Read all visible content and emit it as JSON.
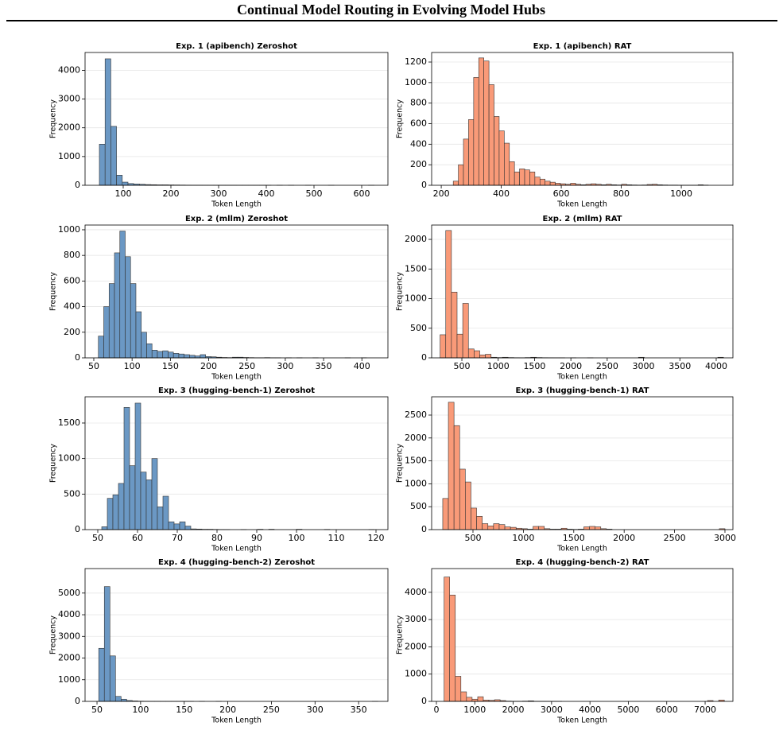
{
  "title": "Continual Model Routing in Evolving Model Hubs",
  "chart_data": [
    {
      "type": "histogram",
      "title": "Exp. 1 (apibench) Zeroshot",
      "xlabel": "Token Length",
      "ylabel": "Frequency",
      "color": "#6b98c4",
      "grid": "y",
      "bins": [
        50,
        62,
        74,
        86,
        98,
        110,
        122,
        134,
        146,
        158,
        170,
        182,
        194,
        206,
        218,
        230,
        242,
        254,
        266,
        278,
        290,
        302,
        314,
        326,
        338,
        350,
        362,
        374,
        386,
        398,
        410,
        422,
        434,
        446,
        458,
        470,
        482,
        494,
        506,
        518,
        530,
        542,
        554,
        566,
        578,
        590,
        602,
        614,
        626
      ],
      "counts": [
        1430,
        4400,
        2050,
        350,
        110,
        60,
        45,
        35,
        25,
        20,
        15,
        15,
        12,
        10,
        8,
        6,
        5,
        5,
        4,
        3,
        3,
        2,
        2,
        2,
        1,
        1,
        1,
        1,
        1,
        1,
        0,
        1,
        0,
        1,
        0,
        0,
        1,
        0,
        0,
        0,
        1,
        0,
        0,
        0,
        0,
        0,
        0,
        1
      ],
      "xlim": [
        20,
        655
      ],
      "xticks": [
        100,
        200,
        300,
        400,
        500,
        600
      ],
      "ylim": [
        0,
        4620
      ],
      "yticks": [
        0,
        1000,
        2000,
        3000,
        4000
      ]
    },
    {
      "type": "histogram",
      "title": "Exp. 1 (apibench) RAT",
      "xlabel": "Token Length",
      "ylabel": "Frequency",
      "color": "#f99a78",
      "grid": "y",
      "bins": [
        240,
        257,
        274,
        291,
        308,
        325,
        342,
        359,
        376,
        393,
        410,
        427,
        444,
        461,
        478,
        495,
        512,
        529,
        546,
        563,
        580,
        597,
        614,
        631,
        648,
        665,
        682,
        699,
        716,
        733,
        750,
        767,
        784,
        801,
        818,
        835,
        852,
        869,
        886,
        903,
        920,
        937,
        954,
        971,
        988,
        1005,
        1022,
        1039,
        1056,
        1073,
        1090
      ],
      "counts": [
        40,
        200,
        450,
        640,
        1050,
        1240,
        1210,
        980,
        670,
        530,
        410,
        230,
        130,
        160,
        150,
        130,
        80,
        60,
        40,
        30,
        20,
        15,
        10,
        20,
        10,
        5,
        10,
        15,
        10,
        5,
        10,
        5,
        3,
        10,
        5,
        3,
        2,
        3,
        8,
        10,
        5,
        3,
        2,
        2,
        1,
        1,
        1,
        1,
        5,
        2
      ],
      "xlim": [
        168,
        1172
      ],
      "xticks": [
        200,
        400,
        600,
        800,
        1000
      ],
      "ylim": [
        0,
        1293
      ],
      "yticks": [
        0,
        200,
        400,
        600,
        800,
        1000,
        1200
      ]
    },
    {
      "type": "histogram",
      "title": "Exp. 2 (mllm) Zeroshot",
      "xlabel": "Token Length",
      "ylabel": "Frequency",
      "color": "#6b98c4",
      "grid": "y",
      "bins": [
        56,
        63,
        70,
        77,
        84,
        91,
        98,
        105,
        112,
        119,
        126,
        133,
        140,
        147,
        154,
        161,
        168,
        175,
        182,
        189,
        196,
        203,
        210,
        217,
        224,
        231,
        238,
        245,
        252,
        259,
        266,
        273,
        280,
        287,
        294,
        301,
        308,
        315,
        322,
        329,
        336,
        343,
        350,
        357,
        364,
        371,
        378,
        385,
        392,
        399,
        406
      ],
      "counts": [
        170,
        400,
        580,
        820,
        990,
        790,
        580,
        360,
        200,
        110,
        60,
        50,
        55,
        45,
        35,
        30,
        25,
        20,
        15,
        25,
        10,
        8,
        5,
        3,
        2,
        5,
        5,
        3,
        2,
        1,
        1,
        2,
        1,
        1,
        0,
        1,
        0,
        1,
        0,
        0,
        1,
        0,
        0,
        0,
        0,
        0,
        1,
        0,
        0,
        1
      ],
      "xlim": [
        38.6,
        434
      ],
      "xticks": [
        50,
        100,
        150,
        200,
        250,
        300,
        350,
        400
      ],
      "ylim": [
        0,
        1037
      ],
      "yticks": [
        0,
        200,
        400,
        600,
        800,
        1000
      ]
    },
    {
      "type": "histogram",
      "title": "Exp. 2 (mllm) RAT",
      "xlabel": "Token Length",
      "ylabel": "Frequency",
      "color": "#f99a78",
      "grid": "y",
      "bins": [
        200,
        278,
        356,
        434,
        512,
        590,
        668,
        746,
        824,
        902,
        980,
        1058,
        1136,
        1214,
        1292,
        1370,
        1448,
        1526,
        1604,
        1682,
        1760,
        1838,
        1916,
        1994,
        2072,
        2150,
        2228,
        2306,
        2384,
        2462,
        2540,
        2618,
        2696,
        2774,
        2852,
        2930,
        3008,
        3086,
        3164,
        3242,
        3320,
        3398,
        3476,
        3554,
        3632,
        3710,
        3788,
        3866,
        3944,
        4022,
        4100
      ],
      "counts": [
        390,
        2150,
        1110,
        400,
        920,
        150,
        120,
        50,
        60,
        10,
        5,
        10,
        5,
        3,
        2,
        5,
        10,
        5,
        3,
        2,
        1,
        1,
        0,
        1,
        0,
        0,
        1,
        0,
        0,
        0,
        0,
        0,
        0,
        0,
        0,
        10,
        0,
        0,
        0,
        0,
        0,
        0,
        0,
        0,
        0,
        0,
        0,
        0,
        0,
        10
      ],
      "xlim": [
        84,
        4230
      ],
      "xticks": [
        500,
        1000,
        1500,
        2000,
        2500,
        3000,
        3500,
        4000
      ],
      "ylim": [
        0,
        2242
      ],
      "yticks": [
        0,
        500,
        1000,
        1500,
        2000
      ]
    },
    {
      "type": "histogram",
      "title": "Exp. 3 (hugging-bench-1) Zeroshot",
      "xlabel": "Token Length",
      "ylabel": "Frequency",
      "color": "#6b98c4",
      "grid": "y",
      "bins": [
        51,
        52.4,
        53.8,
        55.2,
        56.6,
        58,
        59.4,
        60.8,
        62.2,
        63.6,
        65,
        66.4,
        67.8,
        69.2,
        70.6,
        72,
        73.4,
        74.8,
        76.2,
        77.6,
        79,
        80.4,
        81.8,
        83.2,
        84.6,
        86,
        87.4,
        88.8,
        90.2,
        91.6,
        93,
        94.4,
        95.8,
        97.2,
        98.6,
        100,
        101.4,
        102.8,
        104.2,
        105.6,
        107,
        108.4,
        109.8,
        111.2,
        112.6,
        114,
        115.4,
        116.8,
        118.2,
        119.6,
        121
      ],
      "counts": [
        40,
        440,
        490,
        650,
        1720,
        900,
        1780,
        810,
        700,
        1000,
        320,
        470,
        110,
        80,
        110,
        50,
        10,
        8,
        5,
        5,
        3,
        2,
        1,
        0,
        0,
        1,
        0,
        0,
        5,
        0,
        5,
        0,
        0,
        0,
        0,
        5,
        0,
        0,
        0,
        0,
        3,
        0,
        0,
        0,
        0,
        0,
        0,
        0,
        1,
        0
      ],
      "xlim": [
        46.8,
        123
      ],
      "xticks": [
        50,
        60,
        70,
        80,
        90,
        100,
        110,
        120
      ],
      "ylim": [
        0,
        1869
      ],
      "yticks": [
        0,
        500,
        1000,
        1500
      ]
    },
    {
      "type": "histogram",
      "title": "Exp. 3 (hugging-bench-1) RAT",
      "xlabel": "Token Length",
      "ylabel": "Frequency",
      "color": "#f99a78",
      "grid": "y",
      "bins": [
        200,
        256,
        312,
        368,
        424,
        480,
        536,
        592,
        648,
        704,
        760,
        816,
        872,
        928,
        984,
        1040,
        1096,
        1152,
        1208,
        1264,
        1320,
        1376,
        1432,
        1488,
        1544,
        1600,
        1656,
        1712,
        1768,
        1824,
        1880,
        1936,
        1992,
        2048,
        2104,
        2160,
        2216,
        2272,
        2328,
        2384,
        2440,
        2496,
        2552,
        2608,
        2664,
        2720,
        2776,
        2832,
        2888,
        2944,
        3000
      ],
      "counts": [
        680,
        2780,
        2270,
        1320,
        1040,
        470,
        290,
        130,
        80,
        130,
        110,
        60,
        50,
        30,
        20,
        10,
        70,
        70,
        20,
        10,
        10,
        30,
        10,
        5,
        10,
        60,
        70,
        60,
        20,
        10,
        0,
        0,
        0,
        0,
        0,
        0,
        0,
        0,
        0,
        0,
        0,
        0,
        0,
        0,
        0,
        0,
        0,
        0,
        0,
        20
      ],
      "xlim": [
        90,
        3079
      ],
      "xticks": [
        500,
        1000,
        1500,
        2000,
        2500,
        3000
      ],
      "ylim": [
        0,
        2899
      ],
      "yticks": [
        0,
        500,
        1000,
        1500,
        2000,
        2500
      ]
    },
    {
      "type": "histogram",
      "title": "Exp. 4 (hugging-bench-2) Zeroshot",
      "xlabel": "Token Length",
      "ylabel": "Frequency",
      "color": "#6b98c4",
      "grid": "y",
      "bins": [
        52,
        58.4,
        64.8,
        71.2,
        77.6,
        84,
        90.4,
        96.8,
        103.2,
        109.6,
        116,
        122.4,
        128.8,
        135.2,
        141.6,
        148,
        154.4,
        160.8,
        167.2,
        173.6,
        180,
        186.4,
        192.8,
        199.2,
        205.6,
        212,
        218.4,
        224.8,
        231.2,
        237.6,
        244,
        250.4,
        256.8,
        263.2,
        269.6,
        276,
        282.4,
        288.8,
        295.2,
        301.6,
        308,
        314.4,
        320.8,
        327.2,
        333.6,
        340,
        346.4,
        352.8,
        359.2,
        365.6,
        372
      ],
      "counts": [
        2450,
        5300,
        2100,
        230,
        100,
        40,
        20,
        10,
        5,
        4,
        3,
        2,
        2,
        1,
        1,
        1,
        1,
        0,
        1,
        0,
        0,
        1,
        0,
        0,
        0,
        0,
        0,
        0,
        0,
        0,
        0,
        0,
        0,
        0,
        0,
        0,
        0,
        0,
        0,
        0,
        0,
        0,
        0,
        0,
        0,
        0,
        0,
        0,
        0,
        1
      ],
      "xlim": [
        36.3,
        383.6
      ],
      "xticks": [
        50,
        100,
        150,
        200,
        250,
        300,
        350
      ],
      "ylim": [
        0,
        6131
      ],
      "yticks": [
        0,
        1000,
        2000,
        3000,
        4000,
        5000
      ]
    },
    {
      "type": "histogram",
      "title": "Exp. 4 (hugging-bench-2) RAT",
      "xlabel": "Token Length",
      "ylabel": "Frequency",
      "color": "#f99a78",
      "grid": "y",
      "bins": [
        200,
        346,
        492,
        638,
        784,
        930,
        1076,
        1222,
        1368,
        1514,
        1660,
        1806,
        1952,
        2098,
        2244,
        2390,
        2536,
        2682,
        2828,
        2974,
        3120,
        3266,
        3412,
        3558,
        3704,
        3850,
        3996,
        4142,
        4288,
        4434,
        4580,
        4726,
        4872,
        5018,
        5164,
        5310,
        5456,
        5602,
        5748,
        5894,
        6040,
        6186,
        6332,
        6478,
        6624,
        6770,
        6916,
        7062,
        7208,
        7354,
        7500
      ],
      "counts": [
        4560,
        3900,
        920,
        350,
        150,
        80,
        170,
        50,
        40,
        60,
        30,
        10,
        5,
        5,
        10,
        20,
        5,
        3,
        2,
        1,
        1,
        0,
        0,
        0,
        0,
        0,
        0,
        0,
        0,
        0,
        0,
        0,
        0,
        0,
        0,
        0,
        0,
        0,
        0,
        0,
        0,
        0,
        0,
        0,
        0,
        0,
        0,
        30,
        0,
        50
      ],
      "xlim": [
        -124,
        7724
      ],
      "xticks": [
        0,
        1000,
        2000,
        3000,
        4000,
        5000,
        6000,
        7000
      ],
      "ylim": [
        0,
        4870
      ],
      "yticks": [
        0,
        1000,
        2000,
        3000,
        4000
      ]
    }
  ]
}
